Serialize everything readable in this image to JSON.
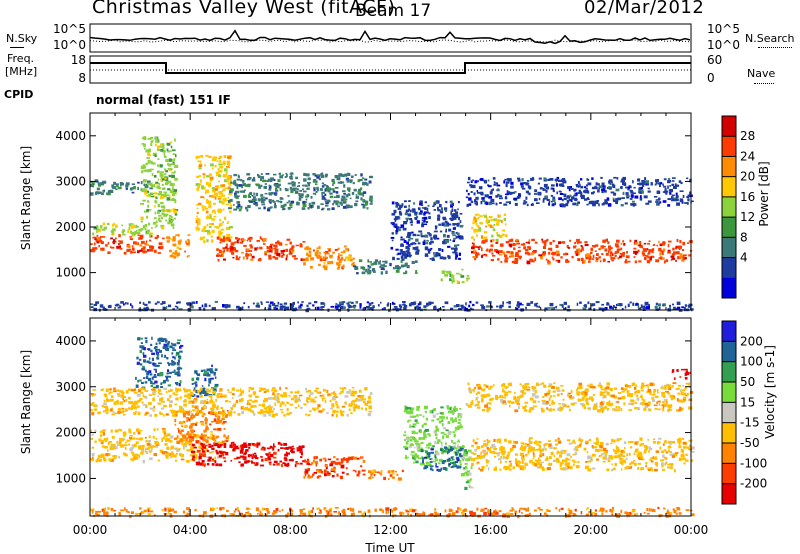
{
  "header": {
    "title": "Christmas Valley West (fitACF)",
    "beam": "Beam 17",
    "date": "02/Mar/2012"
  },
  "strips": {
    "nsky_label": "N.Sky",
    "nsearch_label": "N.Search",
    "noise_left_ticks": [
      "10^5",
      "10^0"
    ],
    "noise_right_ticks": [
      "10^5",
      "10^0"
    ],
    "freq_label": "Freq.",
    "freq_unit": "[MHz]",
    "freq_ticks": [
      "18",
      "8"
    ],
    "nave_label": "Nave",
    "nave_ticks": [
      "60",
      "0"
    ],
    "cpid_label": "CPID",
    "cpid_value": "normal (fast) 151 IF"
  },
  "chart_data": [
    {
      "type": "heatmap",
      "name": "power",
      "xlabel": "",
      "ylabel": "Slant Range [km]",
      "xlim": [
        0,
        24
      ],
      "ylim": [
        180,
        4500
      ],
      "y_ticks": [
        1000,
        2000,
        3000,
        4000
      ],
      "colorbar": {
        "label": "Power [dB]",
        "ticks": [
          "28",
          "24",
          "20",
          "16",
          "12",
          "8",
          "4"
        ],
        "colors": [
          "#d40000",
          "#ff3c00",
          "#ff8c00",
          "#ffc800",
          "#8cd23c",
          "#3c963c",
          "#3c7878",
          "#1e3ca0",
          "#0000dc"
        ]
      },
      "regions": [
        {
          "t0": 0.0,
          "t1": 2.9,
          "r0": 1450,
          "r1": 1850,
          "level": "28"
        },
        {
          "t0": 0.0,
          "t1": 2.5,
          "r0": 1850,
          "r1": 2100,
          "level": "16"
        },
        {
          "t0": 0.0,
          "t1": 2.4,
          "r0": 2750,
          "r1": 3050,
          "level": "8"
        },
        {
          "t0": 2.0,
          "t1": 3.4,
          "r0": 2000,
          "r1": 4000,
          "level": "16"
        },
        {
          "t0": 3.0,
          "t1": 3.9,
          "r0": 1350,
          "r1": 1850,
          "level": "24"
        },
        {
          "t0": 4.2,
          "t1": 5.6,
          "r0": 1700,
          "r1": 3600,
          "level": "20"
        },
        {
          "t0": 5.0,
          "t1": 8.5,
          "r0": 1300,
          "r1": 1800,
          "level": "28"
        },
        {
          "t0": 8.5,
          "t1": 10.5,
          "r0": 1100,
          "r1": 1600,
          "level": "24"
        },
        {
          "t0": 5.5,
          "t1": 11.2,
          "r0": 2400,
          "r1": 3200,
          "level": "8"
        },
        {
          "t0": 10.5,
          "t1": 13.0,
          "r0": 1000,
          "r1": 1300,
          "level": "8"
        },
        {
          "t0": 12.0,
          "t1": 14.8,
          "r0": 1300,
          "r1": 2600,
          "level": "4"
        },
        {
          "t0": 14.0,
          "t1": 15.1,
          "r0": 800,
          "r1": 1100,
          "level": "16"
        },
        {
          "t0": 15.2,
          "t1": 24.0,
          "r0": 1250,
          "r1": 1750,
          "level": "28"
        },
        {
          "t0": 15.2,
          "t1": 16.6,
          "r0": 1700,
          "r1": 2300,
          "level": "20"
        },
        {
          "t0": 15.0,
          "t1": 24.0,
          "r0": 2500,
          "r1": 3100,
          "level": "4"
        },
        {
          "t0": 0.0,
          "t1": 24.0,
          "r0": 200,
          "r1": 380,
          "level": "4"
        }
      ]
    },
    {
      "type": "heatmap",
      "name": "velocity",
      "xlabel": "Time UT",
      "ylabel": "Slant Range [km]",
      "xlim": [
        0,
        24
      ],
      "ylim": [
        180,
        4500
      ],
      "x_ticks": [
        "00:00",
        "04:00",
        "08:00",
        "12:00",
        "16:00",
        "20:00",
        "00:00"
      ],
      "y_ticks": [
        1000,
        2000,
        3000,
        4000
      ],
      "colorbar": {
        "label": "Velocity [m s-1]",
        "ticks": [
          "200",
          "100",
          "50",
          "15",
          "-15",
          "-50",
          "-100",
          "-200"
        ],
        "colors": [
          "#1e1edc",
          "#1e6496",
          "#32a050",
          "#78dc3c",
          "#c8c8c0",
          "#ffbe00",
          "#ff8200",
          "#ff3c00",
          "#e60000"
        ]
      },
      "regions": [
        {
          "t0": 0.0,
          "t1": 3.0,
          "r0": 1400,
          "r1": 2100,
          "level": "-15"
        },
        {
          "t0": 3.0,
          "t1": 5.2,
          "r0": 1400,
          "r1": 2000,
          "level": "-15"
        },
        {
          "t0": 1.8,
          "t1": 3.6,
          "r0": 3000,
          "r1": 4100,
          "level": "200"
        },
        {
          "t0": 4.0,
          "t1": 5.0,
          "r0": 2800,
          "r1": 3500,
          "level": "200"
        },
        {
          "t0": 3.3,
          "t1": 5.5,
          "r0": 1800,
          "r1": 2500,
          "level": "-50"
        },
        {
          "t0": 4.0,
          "t1": 8.5,
          "r0": 1300,
          "r1": 1800,
          "level": "-200"
        },
        {
          "t0": 8.5,
          "t1": 11.0,
          "r0": 1050,
          "r1": 1500,
          "level": "-100"
        },
        {
          "t0": 11.0,
          "t1": 12.5,
          "r0": 1000,
          "r1": 1200,
          "level": "-50"
        },
        {
          "t0": 0.0,
          "t1": 11.2,
          "r0": 2400,
          "r1": 3000,
          "level": "-15"
        },
        {
          "t0": 12.5,
          "t1": 14.8,
          "r0": 1300,
          "r1": 2600,
          "level": "50"
        },
        {
          "t0": 13.2,
          "t1": 14.8,
          "r0": 1200,
          "r1": 1700,
          "level": "200"
        },
        {
          "t0": 14.8,
          "t1": 15.2,
          "r0": 800,
          "r1": 1800,
          "level": "50"
        },
        {
          "t0": 15.2,
          "t1": 24.0,
          "r0": 1200,
          "r1": 1900,
          "level": "-15"
        },
        {
          "t0": 15.0,
          "t1": 24.0,
          "r0": 2500,
          "r1": 3100,
          "level": "-15"
        },
        {
          "t0": 23.2,
          "t1": 24.0,
          "r0": 3200,
          "r1": 3400,
          "level": "-200"
        },
        {
          "t0": 0.0,
          "t1": 24.0,
          "r0": 200,
          "r1": 380,
          "level": "-50"
        }
      ]
    }
  ]
}
